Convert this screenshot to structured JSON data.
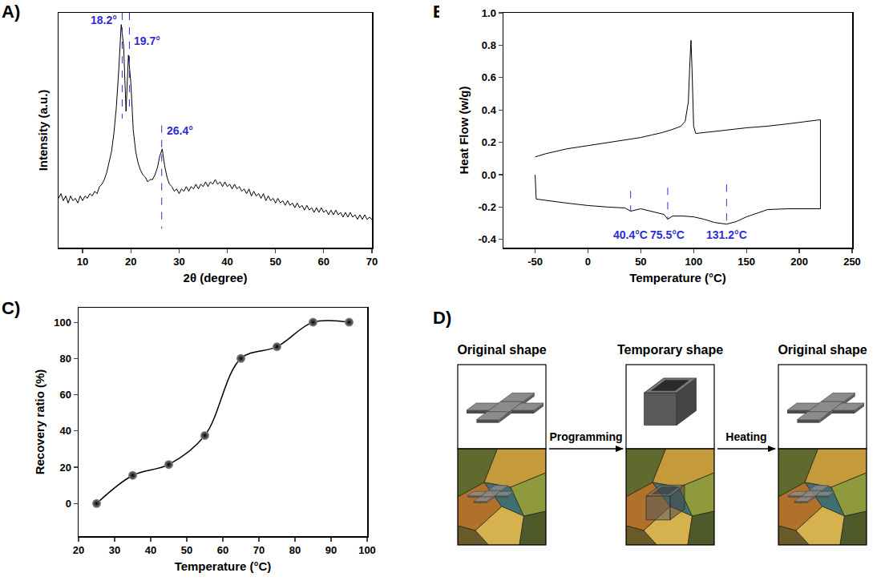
{
  "chart_data": [
    {
      "type": "line",
      "title": "A)",
      "x_label": "2θ (degree)",
      "y_label": "Intensity (a.u.)",
      "xlim": [
        5,
        70
      ],
      "xticks": [
        10,
        20,
        30,
        40,
        50,
        60,
        70
      ],
      "ylim": [
        0,
        100
      ],
      "tick_labels": "x",
      "color": "#000000",
      "x": [
        5,
        5.5,
        6,
        6.5,
        7,
        7.5,
        8,
        8.5,
        9,
        9.5,
        10,
        10.5,
        11,
        11.5,
        12,
        12.5,
        13,
        13.5,
        14,
        14.5,
        15,
        15.5,
        16,
        16.5,
        17,
        17.5,
        18,
        18.5,
        19,
        19.5,
        20,
        20.5,
        21,
        21.5,
        22,
        22.5,
        23,
        23.5,
        24,
        24.5,
        25,
        25.5,
        26,
        26.5,
        27,
        27.5,
        28,
        28.5,
        29,
        29.5,
        30,
        30.5,
        31,
        31.5,
        32,
        32.5,
        33,
        33.5,
        34,
        34.5,
        35,
        35.5,
        36,
        36.5,
        37,
        37.5,
        38,
        38.5,
        39,
        39.5,
        40,
        40.5,
        41,
        41.5,
        42,
        42.5,
        43,
        43.5,
        44,
        44.5,
        45,
        45.5,
        46,
        46.5,
        47,
        47.5,
        48,
        48.5,
        49,
        49.5,
        50,
        50.5,
        51,
        51.5,
        52,
        52.5,
        53,
        53.5,
        54,
        54.5,
        55,
        55.5,
        56,
        56.5,
        57,
        57.5,
        58,
        58.5,
        59,
        59.5,
        60,
        60.5,
        61,
        61.5,
        62,
        62.5,
        63,
        63.5,
        64,
        64.5,
        65,
        65.5,
        66,
        66.5,
        67,
        67.5,
        68,
        68.5,
        69,
        69.5,
        70
      ],
      "values": [
        21,
        23,
        20,
        22,
        19,
        22,
        20,
        21,
        19,
        22,
        20,
        22,
        21,
        23,
        22,
        24,
        23,
        26,
        27,
        29,
        32,
        36,
        41,
        49,
        60,
        76,
        95,
        86,
        58,
        82,
        70,
        50,
        41,
        36,
        33,
        31,
        30,
        28,
        29,
        29,
        31,
        34,
        39,
        42,
        35,
        30,
        27,
        26,
        24,
        25,
        23,
        25,
        24,
        26,
        24,
        26,
        25,
        27,
        25,
        27,
        26,
        28,
        26,
        28,
        27,
        29,
        27,
        28,
        26,
        28,
        26,
        27,
        25,
        27,
        25,
        26,
        24,
        25,
        23,
        25,
        22,
        24,
        22,
        23,
        21,
        23,
        20,
        22,
        20,
        21,
        19,
        21,
        19,
        20,
        18,
        20,
        18,
        19,
        17,
        19,
        17,
        18,
        16,
        18,
        16,
        17,
        15,
        17,
        15,
        17,
        15,
        16,
        14,
        16,
        14,
        16,
        14,
        15,
        13,
        15,
        13,
        15,
        13,
        14,
        12,
        14,
        12,
        14,
        12,
        13,
        12
      ],
      "annotations": [
        {
          "x": 18.2,
          "y": 97,
          "y_from": 100,
          "y_to": 55,
          "text": "18.2°",
          "color": "#2e2ed0"
        },
        {
          "x": 19.7,
          "y": 88,
          "y_from": 100,
          "y_to": 58,
          "text": "19.7°",
          "color": "#2e2ed0"
        },
        {
          "x": 26.4,
          "y": 50,
          "y_from": 52,
          "y_to": 8,
          "text": "26.4°",
          "color": "#2e2ed0"
        }
      ]
    },
    {
      "type": "line",
      "title": "B)",
      "x_label": "Temperature (°C)",
      "y_label": "Heat Flow (w/g)",
      "xlim": [
        -80,
        250
      ],
      "xticks": [
        -50,
        0,
        50,
        100,
        150,
        200,
        250
      ],
      "ylim": [
        -0.45,
        1.0
      ],
      "yticks": [
        -0.4,
        -0.2,
        {
          "value": 0,
          "label": "0.0"
        },
        0.2,
        0.4,
        0.6,
        0.8,
        {
          "value": 1,
          "label": "1.0"
        }
      ],
      "color": "#000000",
      "x": [
        -50,
        -40,
        -30,
        -20,
        -10,
        0,
        10,
        20,
        30,
        40,
        50,
        60,
        70,
        80,
        88,
        92,
        95,
        96.5,
        97.5,
        98.5,
        100,
        102,
        110,
        130,
        150,
        170,
        190,
        210,
        220,
        220,
        210,
        190,
        170,
        150,
        140,
        131.2,
        120,
        110,
        100,
        90,
        80,
        75.5,
        72,
        60,
        50,
        40.4,
        35,
        20,
        0,
        -20,
        -40,
        -49,
        -50
      ],
      "values": [
        0.11,
        0.13,
        0.145,
        0.16,
        0.17,
        0.18,
        0.19,
        0.2,
        0.21,
        0.22,
        0.23,
        0.245,
        0.26,
        0.28,
        0.3,
        0.33,
        0.45,
        0.7,
        0.83,
        0.65,
        0.3,
        0.255,
        0.26,
        0.275,
        0.29,
        0.3,
        0.315,
        0.33,
        0.34,
        -0.21,
        -0.21,
        -0.21,
        -0.215,
        -0.26,
        -0.29,
        -0.305,
        -0.295,
        -0.275,
        -0.26,
        -0.255,
        -0.255,
        -0.275,
        -0.245,
        -0.225,
        -0.21,
        -0.225,
        -0.205,
        -0.2,
        -0.19,
        -0.175,
        -0.16,
        -0.15,
        0.0
      ],
      "annotations": [
        {
          "x": 40.4,
          "y": -0.37,
          "y_from": -0.1,
          "y_to": -0.225,
          "text": "40.4°C",
          "color": "#2e2ed0"
        },
        {
          "x": 75.5,
          "y": -0.37,
          "y_from": -0.08,
          "y_to": -0.275,
          "text": "75.5°C",
          "color": "#2e2ed0"
        },
        {
          "x": 131.2,
          "y": -0.37,
          "y_from": -0.06,
          "y_to": -0.305,
          "text": "131.2°C",
          "color": "#2e2ed0"
        }
      ]
    },
    {
      "type": "scatter",
      "title": "C)",
      "x_label": "Temperature (°C)",
      "y_label": "Recovery ratio (%)",
      "xlim": [
        20,
        100
      ],
      "xticks": [
        20,
        30,
        40,
        50,
        60,
        70,
        80,
        90,
        100
      ],
      "ylim": [
        -18,
        108
      ],
      "yticks": [
        0,
        20,
        40,
        60,
        80,
        100
      ],
      "color": "#000000",
      "marker": "circle",
      "line_style": "spline",
      "x": [
        25,
        35,
        45,
        55,
        65,
        75,
        85,
        95
      ],
      "values": [
        0,
        15.5,
        21.5,
        37.5,
        80,
        86.5,
        100,
        100
      ]
    }
  ],
  "diagram": {
    "title": "D)",
    "stages": [
      {
        "label": "Original shape"
      },
      {
        "label": "Temporary shape"
      },
      {
        "label": "Original shape"
      }
    ],
    "steps": [
      "Programming",
      "Heating"
    ]
  }
}
